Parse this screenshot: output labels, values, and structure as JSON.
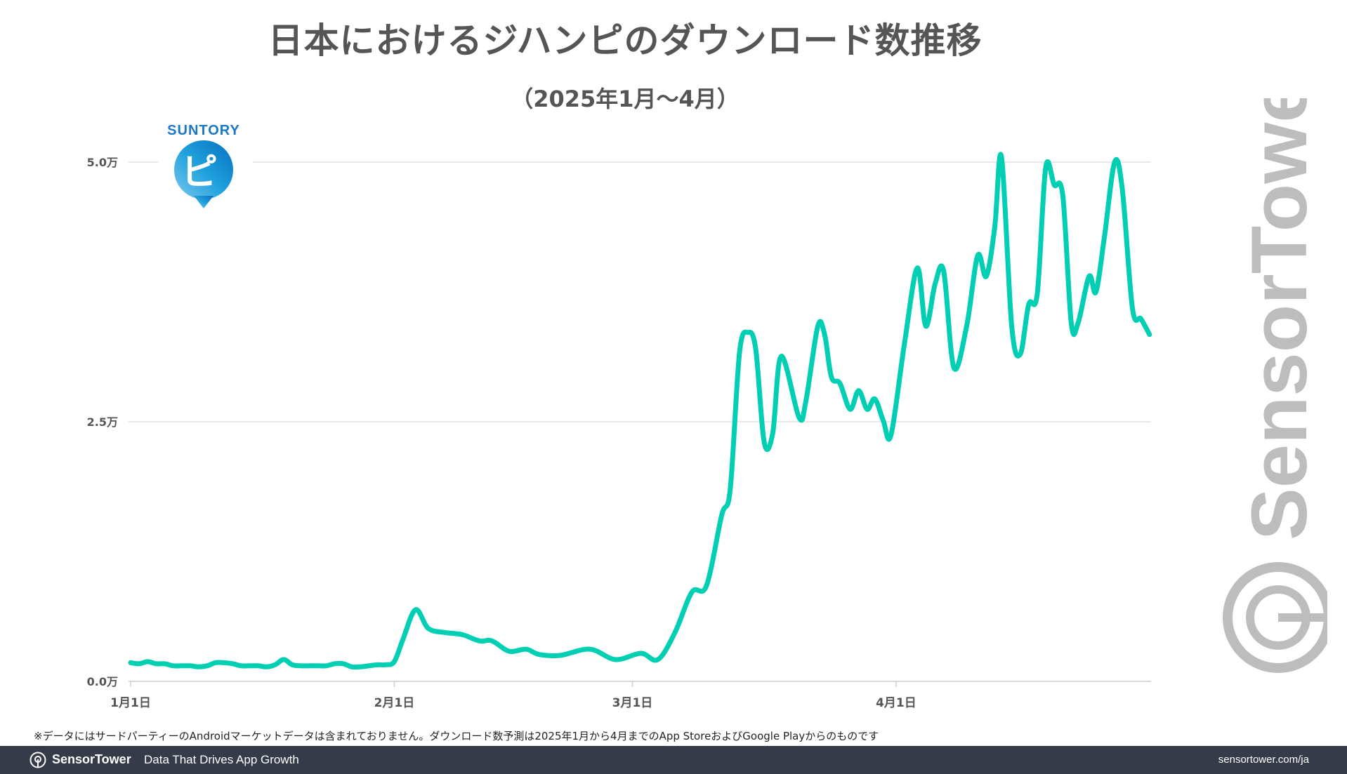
{
  "chart_data": {
    "type": "line",
    "title": "日本におけるジハンピのダウンロード数推移",
    "subtitle": "（2025年1月〜4月）",
    "xlabel": "",
    "ylabel": "",
    "x_unit": "days since 1月1日 (2025)",
    "xlim": [
      0,
      120
    ],
    "ylim": [
      0,
      50000
    ],
    "grid": true,
    "yticks": [
      {
        "value": 0,
        "label": "0.0万"
      },
      {
        "value": 25000,
        "label": "2.5万"
      },
      {
        "value": 50000,
        "label": "5.0万"
      }
    ],
    "xticks": [
      {
        "value": 0,
        "label": "1月1日"
      },
      {
        "value": 31,
        "label": "2月1日"
      },
      {
        "value": 59,
        "label": "3月1日"
      },
      {
        "value": 90,
        "label": "4月1日"
      }
    ],
    "series": [
      {
        "name": "ジハンピ ダウンロード数",
        "color": "#00cfb4",
        "x": [
          0,
          1,
          2,
          3,
          4,
          5,
          6,
          7,
          8,
          9,
          10,
          11,
          12,
          13,
          14,
          15,
          16,
          17,
          18,
          19,
          20,
          21,
          22,
          23,
          24,
          25,
          26,
          27,
          28,
          29,
          30,
          31,
          32,
          33.5,
          35,
          37,
          39,
          41,
          42.5,
          44.5,
          46.5,
          48,
          50.5,
          54,
          57,
          60,
          62,
          64,
          66,
          67.7,
          69.5,
          70.5,
          71.6,
          72.6,
          73.5,
          74.5,
          75.5,
          76.5,
          78.6,
          79.4,
          80.8,
          81.6,
          82.4,
          83.4,
          84.6,
          85.6,
          86.6,
          87.5,
          88.5,
          89.4,
          91,
          92.5,
          93.5,
          94.6,
          95.6,
          96.8,
          98.3,
          99.6,
          100.6,
          101.6,
          102.4,
          103.6,
          104.6,
          105.6,
          106.6,
          107.6,
          108.6,
          109.6,
          110.6,
          111.4,
          112.7,
          113.5,
          114.5,
          115.7,
          116.6,
          117.8,
          118.8,
          119.8
        ],
        "values": [
          1800,
          1700,
          1900,
          1700,
          1700,
          1500,
          1500,
          1500,
          1400,
          1500,
          1800,
          1800,
          1700,
          1500,
          1500,
          1500,
          1400,
          1600,
          2100,
          1600,
          1500,
          1500,
          1500,
          1500,
          1700,
          1700,
          1400,
          1400,
          1500,
          1600,
          1600,
          1900,
          4000,
          6900,
          5100,
          4700,
          4500,
          3900,
          3900,
          2900,
          3100,
          2600,
          2500,
          3100,
          2100,
          2700,
          2100,
          4700,
          8600,
          9200,
          16000,
          18500,
          31700,
          33600,
          32000,
          23000,
          23900,
          31300,
          25400,
          27000,
          34200,
          33400,
          29300,
          28700,
          26200,
          28000,
          26200,
          27200,
          25100,
          23700,
          32600,
          39800,
          34200,
          38300,
          39500,
          30200,
          34200,
          41000,
          39000,
          43700,
          50500,
          34200,
          31500,
          36300,
          37300,
          49500,
          47800,
          46800,
          34500,
          34500,
          39000,
          37500,
          42800,
          50000,
          47400,
          35900,
          34900,
          33400
        ]
      }
    ]
  },
  "logo": {
    "brand": "SUNTORY",
    "glyph": "ピ"
  },
  "watermark": "SensorTower",
  "note": "※データにはサードパーティーのAndroidマーケットデータは含まれておりません。ダウンロード数予測は2025年1月から4月までのApp StoreおよびGoogle Playからのものです",
  "footer": {
    "brand": "SensorTower",
    "tagline": "Data That Drives App Growth",
    "url": "sensortower.com/ja"
  }
}
